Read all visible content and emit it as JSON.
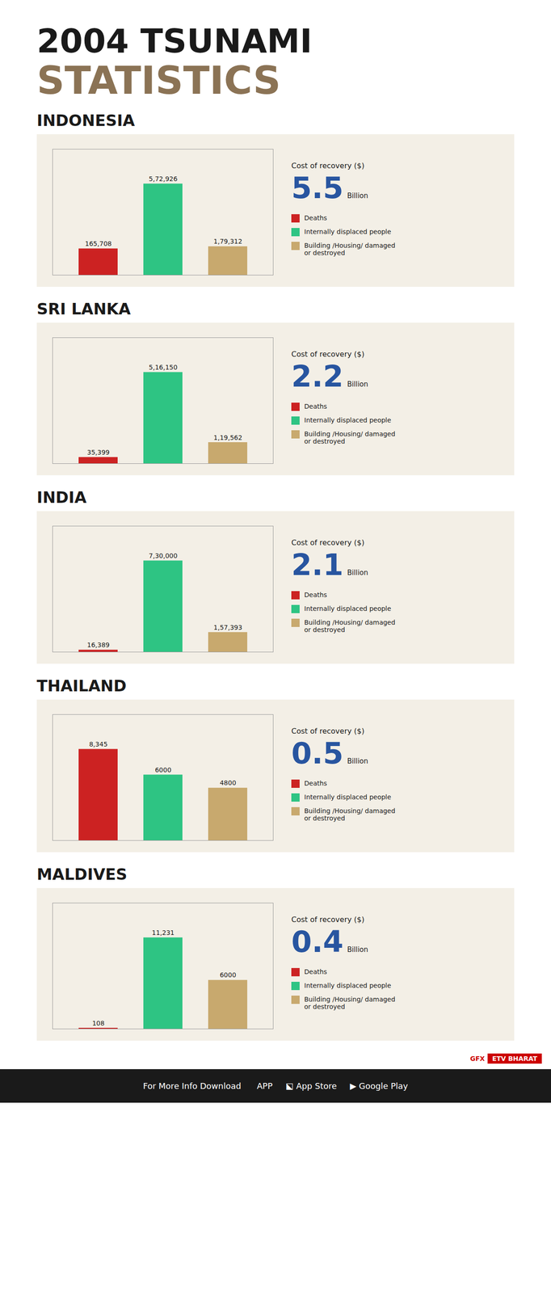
{
  "title": "2004 TSUNAMI",
  "subtitle": "STATISTICS",
  "annotations": [
    "GFX",
    "ETV BHARAT",
    "For More Info Download      APP     ⬕ App Store     ▶ Google Play"
  ],
  "chart_data": [
    {
      "type": "bar",
      "title": "INDONESIA",
      "categories": [
        "Deaths",
        "Internally displaced people",
        "Building /Housing/ damaged\nor destroyed"
      ],
      "values": [
        165708,
        572926,
        179312
      ],
      "value_labels": [
        "165,708",
        "5,72,926",
        "1,79,312"
      ],
      "colors": [
        "#cc2222",
        "#2ec483",
        "#c8a96e"
      ],
      "ylim": [
        0,
        790637.88
      ],
      "data_labels": true,
      "tick_labels": false,
      "grid": false,
      "legend": "right",
      "annotations": [
        "Cost of recovery  ($)",
        "5.5",
        "Billion"
      ]
    },
    {
      "type": "bar",
      "title": "SRI LANKA",
      "categories": [
        "Deaths",
        "Internally displaced people",
        "Building /Housing/ damaged\nor destroyed"
      ],
      "values": [
        35399,
        516150,
        119562
      ],
      "value_labels": [
        "35,399",
        "5,16,150",
        "1,19,562"
      ],
      "colors": [
        "#cc2222",
        "#2ec483",
        "#c8a96e"
      ],
      "ylim": [
        0,
        712287
      ],
      "data_labels": true,
      "tick_labels": false,
      "grid": false,
      "legend": "right",
      "annotations": [
        "Cost of recovery  ($)",
        "2.2",
        "Billion"
      ]
    },
    {
      "type": "bar",
      "title": "INDIA",
      "categories": [
        "Deaths",
        "Internally displaced people",
        "Building /Housing/ damaged\nor destroyed"
      ],
      "values": [
        16389,
        730000,
        157393
      ],
      "value_labels": [
        "16,389",
        "7,30,000",
        "1,57,393"
      ],
      "colors": [
        "#cc2222",
        "#2ec483",
        "#c8a96e"
      ],
      "ylim": [
        0,
        1007400
      ],
      "data_labels": true,
      "tick_labels": false,
      "grid": false,
      "legend": "right",
      "annotations": [
        "Cost of recovery  ($)",
        "2.1",
        "Billion"
      ]
    },
    {
      "type": "bar",
      "title": "THAILAND",
      "categories": [
        "Deaths",
        "Internally displaced people",
        "Building /Housing/ damaged\nor destroyed"
      ],
      "values": [
        8345,
        6000,
        4800
      ],
      "value_labels": [
        "8,345",
        "6000",
        "4800"
      ],
      "colors": [
        "#cc2222",
        "#2ec483",
        "#c8a96e"
      ],
      "ylim": [
        0,
        11516.1
      ],
      "data_labels": true,
      "tick_labels": false,
      "grid": false,
      "legend": "right",
      "annotations": [
        "Cost of recovery  ($)",
        "0.5",
        "Billion"
      ]
    },
    {
      "type": "bar",
      "title": "MALDIVES",
      "categories": [
        "Deaths",
        "Internally displaced people",
        "Building /Housing/ damaged\nor destroyed"
      ],
      "values": [
        108,
        11231,
        6000
      ],
      "value_labels": [
        "108",
        "11,231",
        "6000"
      ],
      "colors": [
        "#cc2222",
        "#2ec483",
        "#c8a96e"
      ],
      "ylim": [
        0,
        15498.78
      ],
      "data_labels": true,
      "tick_labels": false,
      "grid": false,
      "legend": "right",
      "annotations": [
        "Cost of recovery  ($)",
        "0.4",
        "Billion"
      ]
    }
  ]
}
